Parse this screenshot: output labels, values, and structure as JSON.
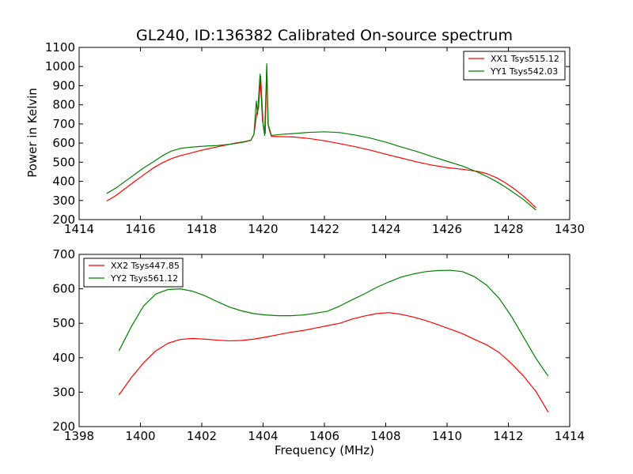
{
  "title": "GL240, ID:136382 Calibrated On-source spectrum",
  "colors": {
    "xx": "#ff0000",
    "yy": "#008000"
  },
  "chart_data": [
    {
      "type": "line",
      "ylabel": "Power in Kelvin",
      "xlabel": "",
      "xlim": [
        1414,
        1430
      ],
      "ylim": [
        200,
        1100
      ],
      "xticks": [
        1414,
        1416,
        1418,
        1420,
        1422,
        1424,
        1426,
        1428,
        1430
      ],
      "yticks": [
        200,
        300,
        400,
        500,
        600,
        700,
        800,
        900,
        1000,
        1100
      ],
      "legend_position": "top-right",
      "series": [
        {
          "name": "XX1 Tsys515.12",
          "color": "#ff0000",
          "points": [
            [
              1414.9,
              297
            ],
            [
              1415.2,
              326
            ],
            [
              1415.5,
              362
            ],
            [
              1415.8,
              398
            ],
            [
              1416.1,
              433
            ],
            [
              1416.4,
              468
            ],
            [
              1416.7,
              496
            ],
            [
              1417.0,
              518
            ],
            [
              1417.3,
              534
            ],
            [
              1417.6,
              546
            ],
            [
              1417.9,
              559
            ],
            [
              1418.2,
              570
            ],
            [
              1418.5,
              580
            ],
            [
              1418.8,
              590
            ],
            [
              1419.1,
              600
            ],
            [
              1419.4,
              608
            ],
            [
              1419.6,
              615
            ],
            [
              1419.7,
              645
            ],
            [
              1419.8,
              760
            ],
            [
              1419.85,
              780
            ],
            [
              1419.92,
              950
            ],
            [
              1420.0,
              700
            ],
            [
              1420.07,
              650
            ],
            [
              1420.12,
              1000
            ],
            [
              1420.17,
              690
            ],
            [
              1420.22,
              660
            ],
            [
              1420.27,
              635
            ],
            [
              1420.5,
              634
            ],
            [
              1421.0,
              632
            ],
            [
              1421.5,
              624
            ],
            [
              1422.0,
              612
            ],
            [
              1422.5,
              597
            ],
            [
              1423.0,
              581
            ],
            [
              1423.5,
              563
            ],
            [
              1424.0,
              542
            ],
            [
              1424.5,
              522
            ],
            [
              1425.0,
              502
            ],
            [
              1425.5,
              485
            ],
            [
              1426.0,
              472
            ],
            [
              1426.5,
              463
            ],
            [
              1427.0,
              452
            ],
            [
              1427.3,
              440
            ],
            [
              1427.6,
              420
            ],
            [
              1427.9,
              393
            ],
            [
              1428.2,
              360
            ],
            [
              1428.5,
              322
            ],
            [
              1428.9,
              262
            ]
          ]
        },
        {
          "name": "YY1 Tsys542.03",
          "color": "#008000",
          "points": [
            [
              1414.9,
              337
            ],
            [
              1415.2,
              365
            ],
            [
              1415.5,
              400
            ],
            [
              1415.8,
              435
            ],
            [
              1416.1,
              470
            ],
            [
              1416.4,
              500
            ],
            [
              1416.7,
              532
            ],
            [
              1417.0,
              558
            ],
            [
              1417.3,
              572
            ],
            [
              1417.6,
              578
            ],
            [
              1417.9,
              582
            ],
            [
              1418.2,
              585
            ],
            [
              1418.5,
              587
            ],
            [
              1418.8,
              592
            ],
            [
              1419.1,
              598
            ],
            [
              1419.4,
              606
            ],
            [
              1419.6,
              614
            ],
            [
              1419.7,
              645
            ],
            [
              1419.78,
              820
            ],
            [
              1419.82,
              750
            ],
            [
              1419.9,
              960
            ],
            [
              1419.98,
              720
            ],
            [
              1420.05,
              640
            ],
            [
              1420.12,
              1015
            ],
            [
              1420.16,
              700
            ],
            [
              1420.2,
              680
            ],
            [
              1420.27,
              640
            ],
            [
              1420.5,
              644
            ],
            [
              1421.0,
              650
            ],
            [
              1421.5,
              656
            ],
            [
              1422.0,
              659
            ],
            [
              1422.5,
              655
            ],
            [
              1423.0,
              642
            ],
            [
              1423.5,
              626
            ],
            [
              1424.0,
              605
            ],
            [
              1424.5,
              580
            ],
            [
              1425.0,
              557
            ],
            [
              1425.5,
              530
            ],
            [
              1426.0,
              505
            ],
            [
              1426.5,
              480
            ],
            [
              1427.0,
              448
            ],
            [
              1427.3,
              425
            ],
            [
              1427.6,
              400
            ],
            [
              1427.9,
              371
            ],
            [
              1428.2,
              338
            ],
            [
              1428.5,
              304
            ],
            [
              1428.9,
              250
            ]
          ]
        }
      ]
    },
    {
      "type": "line",
      "ylabel": "",
      "xlabel": "Frequency (MHz)",
      "xlim": [
        1398,
        1414
      ],
      "ylim": [
        200,
        700
      ],
      "xticks": [
        1398,
        1400,
        1402,
        1404,
        1406,
        1408,
        1410,
        1412,
        1414
      ],
      "yticks": [
        200,
        300,
        400,
        500,
        600,
        700
      ],
      "legend_position": "top-left",
      "series": [
        {
          "name": "XX2 Tsys447.85",
          "color": "#ff0000",
          "points": [
            [
              1399.3,
              292
            ],
            [
              1399.7,
              342
            ],
            [
              1400.1,
              385
            ],
            [
              1400.5,
              420
            ],
            [
              1400.9,
              442
            ],
            [
              1401.3,
              453
            ],
            [
              1401.7,
              456
            ],
            [
              1402.1,
              454
            ],
            [
              1402.5,
              451
            ],
            [
              1402.9,
              449
            ],
            [
              1403.3,
              450
            ],
            [
              1403.7,
              454
            ],
            [
              1404.1,
              460
            ],
            [
              1404.5,
              467
            ],
            [
              1404.9,
              474
            ],
            [
              1405.3,
              479
            ],
            [
              1405.7,
              486
            ],
            [
              1406.1,
              493
            ],
            [
              1406.5,
              500
            ],
            [
              1406.9,
              512
            ],
            [
              1407.3,
              521
            ],
            [
              1407.7,
              528
            ],
            [
              1408.1,
              531
            ],
            [
              1408.5,
              526
            ],
            [
              1408.9,
              518
            ],
            [
              1409.3,
              508
            ],
            [
              1409.7,
              496
            ],
            [
              1410.1,
              483
            ],
            [
              1410.5,
              470
            ],
            [
              1410.9,
              453
            ],
            [
              1411.3,
              437
            ],
            [
              1411.7,
              415
            ],
            [
              1412.1,
              383
            ],
            [
              1412.5,
              346
            ],
            [
              1412.9,
              302
            ],
            [
              1413.3,
              242
            ]
          ]
        },
        {
          "name": "YY2 Tsys561.12",
          "color": "#008000",
          "points": [
            [
              1399.3,
              420
            ],
            [
              1399.7,
              490
            ],
            [
              1400.1,
              550
            ],
            [
              1400.5,
              585
            ],
            [
              1400.9,
              598
            ],
            [
              1401.3,
              600
            ],
            [
              1401.7,
              593
            ],
            [
              1402.1,
              580
            ],
            [
              1402.5,
              563
            ],
            [
              1402.9,
              547
            ],
            [
              1403.3,
              536
            ],
            [
              1403.7,
              528
            ],
            [
              1404.1,
              524
            ],
            [
              1404.5,
              522
            ],
            [
              1404.9,
              522
            ],
            [
              1405.3,
              524
            ],
            [
              1405.7,
              529
            ],
            [
              1406.1,
              535
            ],
            [
              1406.5,
              550
            ],
            [
              1406.9,
              568
            ],
            [
              1407.3,
              585
            ],
            [
              1407.7,
              604
            ],
            [
              1408.1,
              620
            ],
            [
              1408.5,
              634
            ],
            [
              1408.9,
              643
            ],
            [
              1409.3,
              650
            ],
            [
              1409.7,
              653
            ],
            [
              1410.1,
              654
            ],
            [
              1410.5,
              650
            ],
            [
              1410.9,
              635
            ],
            [
              1411.3,
              610
            ],
            [
              1411.7,
              572
            ],
            [
              1412.1,
              520
            ],
            [
              1412.5,
              459
            ],
            [
              1412.9,
              398
            ],
            [
              1413.3,
              346
            ]
          ]
        }
      ]
    }
  ]
}
